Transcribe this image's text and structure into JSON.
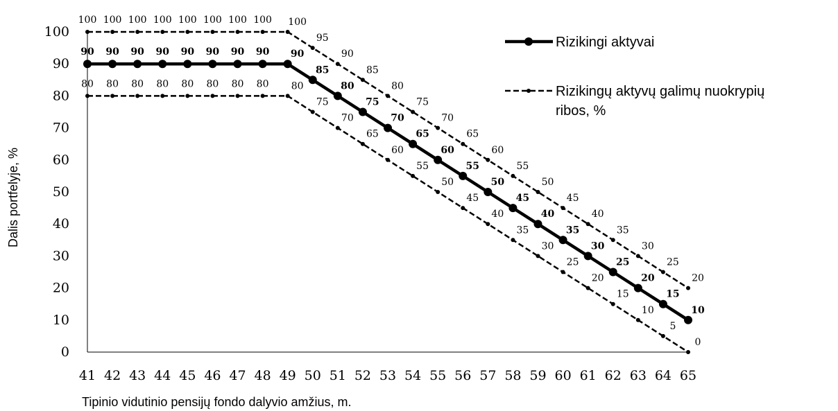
{
  "chart_data": {
    "type": "line",
    "title": "",
    "xlabel": "Tipinio vidutinio pensijų fondo dalyvio amžius, m.",
    "ylabel": "Dalis portfelyje, %",
    "x": [
      41,
      42,
      43,
      44,
      45,
      46,
      47,
      48,
      49,
      50,
      51,
      52,
      53,
      54,
      55,
      56,
      57,
      58,
      59,
      60,
      61,
      62,
      63,
      64,
      65
    ],
    "ylim": [
      0,
      100
    ],
    "yticks": [
      0,
      10,
      20,
      30,
      40,
      50,
      60,
      70,
      80,
      90,
      100
    ],
    "grid": false,
    "legend_position": "right",
    "series": [
      {
        "name": "Rizikingi aktyvai",
        "style": "solid-thick",
        "color": "#000000",
        "values": [
          90,
          90,
          90,
          90,
          90,
          90,
          90,
          90,
          90,
          85,
          80,
          75,
          70,
          65,
          60,
          55,
          50,
          45,
          40,
          35,
          30,
          25,
          20,
          15,
          10
        ]
      },
      {
        "name": "Rizikingų aktyvų galimų nuokrypių ribos, %",
        "style": "dashed",
        "color": "#000000",
        "values": [
          100,
          100,
          100,
          100,
          100,
          100,
          100,
          100,
          100,
          95,
          90,
          85,
          80,
          75,
          70,
          65,
          60,
          55,
          50,
          45,
          40,
          35,
          30,
          25,
          20
        ]
      },
      {
        "name": "",
        "style": "dashed",
        "color": "#000000",
        "values": [
          80,
          80,
          80,
          80,
          80,
          80,
          80,
          80,
          80,
          75,
          70,
          65,
          60,
          55,
          50,
          45,
          40,
          35,
          30,
          25,
          20,
          15,
          10,
          5,
          0
        ]
      }
    ]
  },
  "legend": {
    "line1": "Rizikingi aktyvai",
    "line2a": "Rizikingų aktyvų galimų nuokrypių",
    "line2b": "ribos, %"
  }
}
